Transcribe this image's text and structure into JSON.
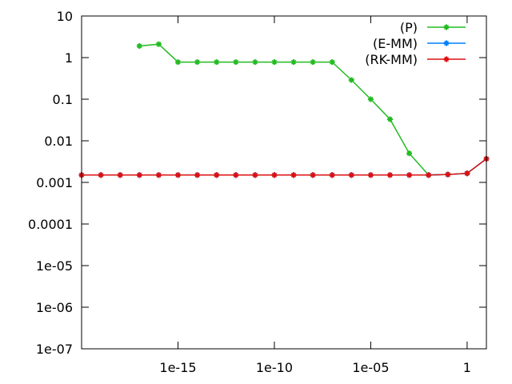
{
  "chart_data": {
    "type": "line",
    "title": "",
    "xlabel": "",
    "ylabel": "",
    "x_scale": "log",
    "y_scale": "log",
    "xlim": [
      1e-20,
      10.0
    ],
    "ylim": [
      1e-07,
      10.0
    ],
    "grid": false,
    "legend_position": "top-right",
    "x_ticks": [
      {
        "value": 1e-15,
        "label": "1e-15"
      },
      {
        "value": 1e-10,
        "label": "1e-10"
      },
      {
        "value": 1e-05,
        "label": "1e-05"
      },
      {
        "value": 1,
        "label": "1"
      }
    ],
    "y_ticks": [
      {
        "value": 1e-07,
        "label": "1e-07"
      },
      {
        "value": 1e-06,
        "label": "1e-06"
      },
      {
        "value": 1e-05,
        "label": "1e-05"
      },
      {
        "value": 0.0001,
        "label": "0.0001"
      },
      {
        "value": 0.001,
        "label": "0.001"
      },
      {
        "value": 0.01,
        "label": "0.01"
      },
      {
        "value": 0.1,
        "label": "0.1"
      },
      {
        "value": 1,
        "label": "1"
      },
      {
        "value": 10,
        "label": "10"
      }
    ],
    "series": [
      {
        "name": "(P)",
        "color": "#22bb22",
        "x": [
          1e-17,
          1e-16,
          1e-15,
          1e-14,
          1e-13,
          1e-12,
          1e-11,
          1e-10,
          1e-09,
          1e-08,
          1e-07,
          1e-06,
          1e-05,
          0.0001,
          0.001,
          0.01,
          0.1,
          1,
          10
        ],
        "y": [
          1.9,
          2.1,
          0.78,
          0.78,
          0.78,
          0.78,
          0.78,
          0.78,
          0.78,
          0.78,
          0.78,
          0.29,
          0.1,
          0.033,
          0.005,
          0.0015,
          0.00155,
          0.00165,
          0.0037
        ]
      },
      {
        "name": "(E-MM)",
        "color": "#0080ff",
        "x": [
          1e-20,
          1e-19,
          1e-18,
          1e-17,
          1e-16,
          1e-15,
          1e-14,
          1e-13,
          1e-12,
          1e-11,
          1e-10,
          1e-09,
          1e-08,
          1e-07,
          1e-06,
          1e-05,
          0.0001,
          0.001,
          0.01,
          0.1,
          1,
          10
        ],
        "y": [
          0.0015,
          0.0015,
          0.0015,
          0.0015,
          0.0015,
          0.0015,
          0.0015,
          0.0015,
          0.0015,
          0.0015,
          0.0015,
          0.0015,
          0.0015,
          0.0015,
          0.0015,
          0.0015,
          0.0015,
          0.0015,
          0.0015,
          0.00155,
          0.00165,
          0.0037
        ]
      },
      {
        "name": "(RK-MM)",
        "color": "#dd1111",
        "x": [
          1e-20,
          1e-19,
          1e-18,
          1e-17,
          1e-16,
          1e-15,
          1e-14,
          1e-13,
          1e-12,
          1e-11,
          1e-10,
          1e-09,
          1e-08,
          1e-07,
          1e-06,
          1e-05,
          0.0001,
          0.001,
          0.01,
          0.1,
          1,
          10
        ],
        "y": [
          0.0015,
          0.0015,
          0.0015,
          0.0015,
          0.0015,
          0.0015,
          0.0015,
          0.0015,
          0.0015,
          0.0015,
          0.0015,
          0.0015,
          0.0015,
          0.0015,
          0.0015,
          0.0015,
          0.0015,
          0.0015,
          0.0015,
          0.00155,
          0.00165,
          0.0037
        ]
      }
    ]
  }
}
